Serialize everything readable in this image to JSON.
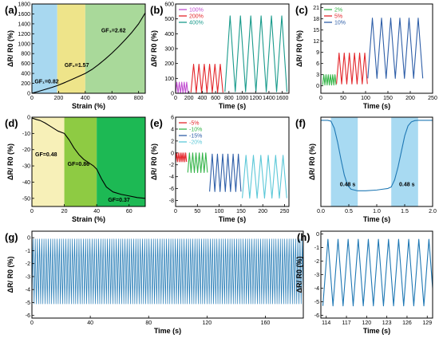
{
  "chart_data": [
    {
      "id": "a",
      "type": "line",
      "panel_label": "(a)",
      "xlabel": "Strain (%)",
      "ylabel": "ΔR/ R0 (%)",
      "xlim": [
        0,
        850
      ],
      "ylim": [
        0,
        1800
      ],
      "xticks": [
        0,
        200,
        400,
        600,
        800
      ],
      "yticks": [
        0,
        200,
        400,
        600,
        800,
        1000,
        1200,
        1400,
        1600,
        1800
      ],
      "regions": [
        {
          "from": 0,
          "to": 190,
          "color": "#a8d8f0"
        },
        {
          "from": 190,
          "to": 400,
          "color": "#eee48a"
        },
        {
          "from": 400,
          "to": 850,
          "color": "#a9d99a"
        }
      ],
      "series": [
        {
          "color": "#000000",
          "x": [
            0,
            50,
            100,
            150,
            190,
            250,
            300,
            350,
            400,
            450,
            500,
            550,
            600,
            650,
            700,
            750,
            800,
            850
          ],
          "y": [
            0,
            38,
            78,
            118,
            155,
            220,
            280,
            340,
            400,
            480,
            580,
            690,
            810,
            940,
            1080,
            1230,
            1400,
            1620
          ]
        }
      ],
      "annotations": [
        {
          "text": "GF₁=0.82",
          "x": 20,
          "y": 200
        },
        {
          "text": "GF₂=1.57",
          "x": 245,
          "y": 530
        },
        {
          "text": "GF₃=2.62",
          "x": 520,
          "y": 1230
        }
      ]
    },
    {
      "id": "b",
      "type": "line",
      "panel_label": "(b)",
      "xlabel": "Time (s)",
      "ylabel": "ΔR/ R0 (%)",
      "xlim": [
        0,
        1700
      ],
      "ylim": [
        0,
        600
      ],
      "xticks": [
        0,
        200,
        400,
        600,
        800,
        1000,
        1200,
        1400,
        1600
      ],
      "yticks": [
        0,
        100,
        200,
        300,
        400,
        500,
        600
      ],
      "legend": {
        "position": "top-left"
      },
      "series": [
        {
          "name": "100%",
          "color": "#c14fd1",
          "pattern": "triangle",
          "start": 0,
          "period": 37,
          "cycles": 5,
          "min": 0,
          "max": 75
        },
        {
          "name": "200%",
          "color": "#e3262b",
          "pattern": "triangle",
          "start": 230,
          "period": 80,
          "cycles": 6,
          "min": 5,
          "max": 195
        },
        {
          "name": "400%",
          "color": "#1a9b8c",
          "pattern": "triangle",
          "start": 740,
          "period": 155,
          "cycles": 6,
          "min": 10,
          "max": 520
        }
      ]
    },
    {
      "id": "c",
      "type": "line",
      "panel_label": "(c)",
      "xlabel": "Time (s)",
      "ylabel": "ΔR/ R0 (%)",
      "xlim": [
        0,
        250
      ],
      "ylim": [
        -2,
        22
      ],
      "xticks": [
        0,
        50,
        100,
        150,
        200,
        250
      ],
      "yticks": [
        0,
        3,
        6,
        9,
        12,
        15,
        18,
        21
      ],
      "legend": {
        "position": "top-left"
      },
      "series": [
        {
          "name": "2%",
          "color": "#36b54a",
          "pattern": "triangle",
          "start": 4,
          "period": 5,
          "cycles": 6,
          "min": 0.2,
          "max": 3
        },
        {
          "name": "5%",
          "color": "#e3262b",
          "pattern": "triangle",
          "start": 35,
          "period": 11.5,
          "cycles": 6,
          "min": 0.5,
          "max": 8.8
        },
        {
          "name": "10%",
          "color": "#2f5fa8",
          "pattern": "triangle",
          "start": 105,
          "period": 20.5,
          "cycles": 6,
          "min": 2,
          "max": 18.2
        }
      ]
    },
    {
      "id": "d",
      "type": "line",
      "panel_label": "(d)",
      "xlabel": "Strain (%)",
      "ylabel": "ΔR/ R0 (%)",
      "xlim": [
        0,
        70
      ],
      "ylim": [
        -55,
        0
      ],
      "xticks": [
        0,
        20,
        40,
        60
      ],
      "yticks": [
        0,
        -10,
        -20,
        -30,
        -40,
        -50
      ],
      "regions": [
        {
          "from": 0,
          "to": 20,
          "color": "#f7f0b8"
        },
        {
          "from": 20,
          "to": 40,
          "color": "#8ecb43"
        },
        {
          "from": 40,
          "to": 70,
          "color": "#1db954"
        }
      ],
      "series": [
        {
          "color": "#000000",
          "x": [
            0,
            3,
            5,
            8,
            12,
            16,
            20,
            23,
            26,
            29,
            32,
            35,
            38,
            40,
            43,
            46,
            50,
            55,
            60,
            65,
            70
          ],
          "y": [
            -0.5,
            -1.5,
            -2,
            -3.5,
            -6,
            -8.5,
            -10,
            -14,
            -19,
            -23,
            -26,
            -28,
            -30,
            -32,
            -38,
            -43,
            -46,
            -47.5,
            -48.5,
            -49.5,
            -50
          ]
        }
      ],
      "annotations": [
        {
          "text": "GF=0.48",
          "x": 2,
          "y": -24
        },
        {
          "text": "GF=0.86",
          "x": 22,
          "y": -30
        },
        {
          "text": "GF=0.37",
          "x": 47,
          "y": -52
        }
      ]
    },
    {
      "id": "e",
      "type": "line",
      "panel_label": "(e)",
      "xlabel": "Time (s)",
      "ylabel": "ΔR/ R0 (%)",
      "xlim": [
        0,
        260
      ],
      "ylim": [
        -9,
        6
      ],
      "xticks": [
        0,
        50,
        100,
        150,
        200,
        250
      ],
      "yticks": [
        6,
        4,
        2,
        0,
        -2,
        -4,
        -6,
        -8
      ],
      "legend": {
        "position": "top-left"
      },
      "series": [
        {
          "name": "-5%",
          "color": "#e3262b",
          "pattern": "triangle",
          "start": 0,
          "period": 4.2,
          "cycles": 6,
          "min": -1.5,
          "max": 0
        },
        {
          "name": "-10%",
          "color": "#36b54a",
          "pattern": "triangle",
          "start": 28,
          "period": 7.5,
          "cycles": 6,
          "min": -3.3,
          "max": 0
        },
        {
          "name": "-15%",
          "color": "#2f5fa8",
          "pattern": "triangle",
          "start": 78,
          "period": 12,
          "cycles": 6,
          "min": -6.5,
          "max": -0.2
        },
        {
          "name": "-20%",
          "color": "#5cc8d8",
          "pattern": "triangle",
          "start": 153,
          "period": 17,
          "cycles": 6,
          "min": -7.6,
          "max": -0.4
        }
      ]
    },
    {
      "id": "f",
      "type": "line",
      "panel_label": "(f)",
      "xlabel": "Time (s)",
      "ylabel": "ΔR/ R0 (%)",
      "xlim": [
        0,
        2
      ],
      "ylim": [
        -55,
        2
      ],
      "xticks": [
        0.0,
        0.5,
        1.0,
        1.5,
        2.0
      ],
      "regions": [
        {
          "from": 0.18,
          "to": 0.66,
          "color": "#a8daf2"
        },
        {
          "from": 1.26,
          "to": 1.74,
          "color": "#a8daf2"
        }
      ],
      "series": [
        {
          "color": "#1f78b4",
          "x": [
            0,
            0.12,
            0.18,
            0.24,
            0.3,
            0.36,
            0.42,
            0.48,
            0.54,
            0.6,
            0.66,
            0.8,
            1.0,
            1.1,
            1.2,
            1.26,
            1.32,
            1.38,
            1.44,
            1.5,
            1.56,
            1.62,
            1.68,
            1.74,
            1.85,
            2.0
          ],
          "y": [
            0,
            0,
            -0.5,
            -5,
            -14,
            -25,
            -35,
            -41.5,
            -44,
            -44.5,
            -45,
            -45,
            -44.5,
            -44,
            -43.5,
            -42.5,
            -38,
            -30,
            -20,
            -10,
            -3.5,
            -1,
            -0.2,
            0,
            0,
            0
          ]
        }
      ],
      "annotations": [
        {
          "text": "0.48 s",
          "x": 0.34,
          "y": -42
        },
        {
          "text": "0.48 s",
          "x": 1.4,
          "y": -42
        }
      ]
    },
    {
      "id": "g",
      "type": "line",
      "panel_label": "(g)",
      "xlabel": "Time (s)",
      "ylabel": "ΔR/ R0 (%)",
      "xlim": [
        0,
        186
      ],
      "ylim": [
        -6.2,
        0.5
      ],
      "xticks": [
        0,
        40,
        80,
        120,
        160
      ],
      "yticks": [
        0,
        -1,
        -2,
        -3,
        -4,
        -5,
        -6
      ],
      "series": [
        {
          "color": "#1f78b4",
          "pattern": "triangle",
          "start": 0,
          "period": 1.5,
          "cycles": 124,
          "min": -5.1,
          "max": -0.1
        }
      ]
    },
    {
      "id": "h",
      "type": "line",
      "panel_label": "(h)",
      "xlabel": "Time (s)",
      "ylabel": "ΔR/ R0 (%)",
      "xlim": [
        113.2,
        129.8
      ],
      "ylim": [
        -6.2,
        0.2
      ],
      "xticks": [
        114,
        117,
        120,
        123,
        126,
        129
      ],
      "yticks": [
        0,
        -1,
        -2,
        -3,
        -4,
        -5,
        -6
      ],
      "series": [
        {
          "color": "#1f78b4",
          "pattern": "triangle",
          "start": 113.5,
          "period": 1.5,
          "cycles": 11,
          "min": -5.3,
          "max": -0.4
        }
      ]
    }
  ]
}
